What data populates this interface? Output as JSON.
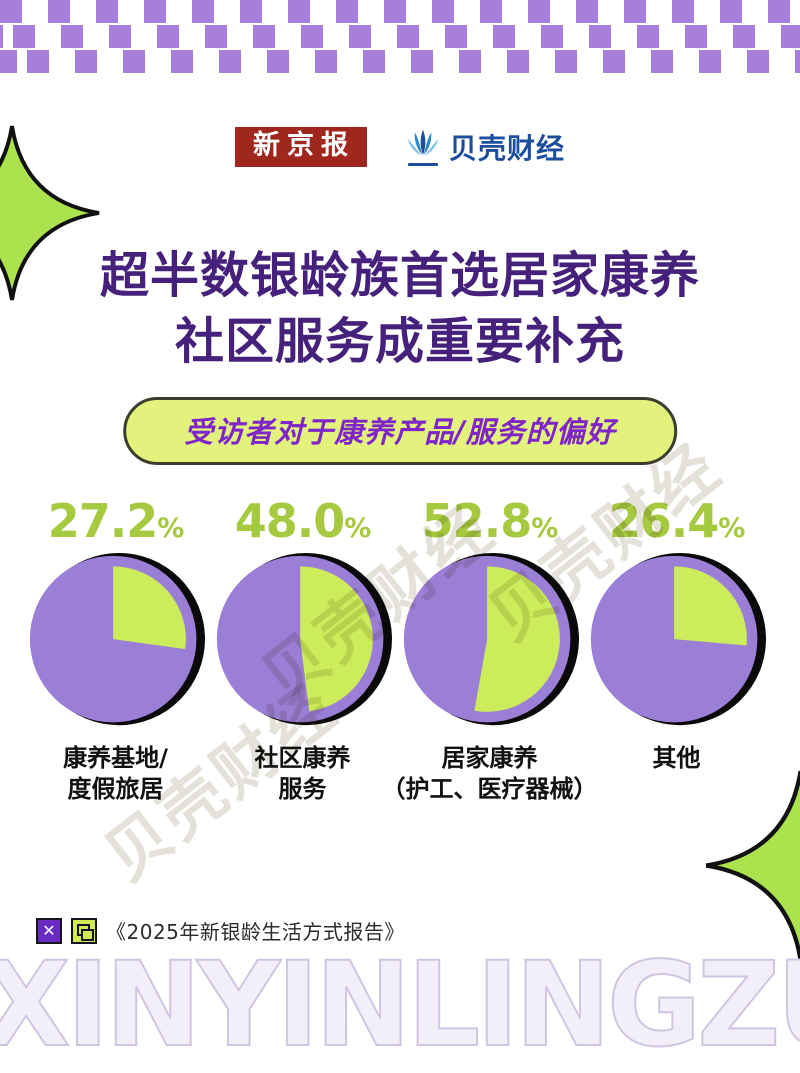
{
  "header": {
    "brand1": "新京报",
    "brand2": "贝壳财经"
  },
  "title": {
    "line1": "超半数银龄族首选居家康养",
    "line2": "社区服务成重要补充"
  },
  "subtitle": "受访者对于康养产品/服务的偏好",
  "chart_data": {
    "type": "pie",
    "title": "受访者对于康养产品/服务的偏好",
    "unit": "%",
    "percent_sign": "%",
    "items": [
      {
        "label": "康养基地/度假旅居",
        "label_line1": "康养基地/",
        "label_line2": "度假旅居",
        "value": 27.2,
        "display": "27.2"
      },
      {
        "label": "社区康养服务",
        "label_line1": "社区康养",
        "label_line2": "服务",
        "value": 48.0,
        "display": "48.0"
      },
      {
        "label": "居家康养（护工、医疗器械）",
        "label_line1": "居家康养",
        "label_line2": "（护工、医疗器械）",
        "value": 52.8,
        "display": "52.8"
      },
      {
        "label": "其他",
        "label_line1": "其他",
        "label_line2": "",
        "value": 26.4,
        "display": "26.4"
      }
    ],
    "colors": {
      "slice": "#cdec5b",
      "base": "#9b7ed6",
      "shadow": "#0a0a0a",
      "value_text": "#a5c93f"
    },
    "legend": "none",
    "notes": "green slice = share of respondents, drawn clockwise from 12 o'clock"
  },
  "source": {
    "text": "《2025年新银龄生活方式报告》",
    "icon1": "x-mark-icon",
    "icon2": "copy-icon"
  },
  "watermarks": {
    "big_text": "XINYINLINGZU",
    "diagonal_text": "贝壳财经"
  },
  "accents": {
    "checker_purple": "#a77edb",
    "title_purple": "#45217b",
    "pill_green": "#e2f27d",
    "blob_green": "#ace24d",
    "brand_red": "#9f271e",
    "brand_blue": "#1c4e9d"
  }
}
